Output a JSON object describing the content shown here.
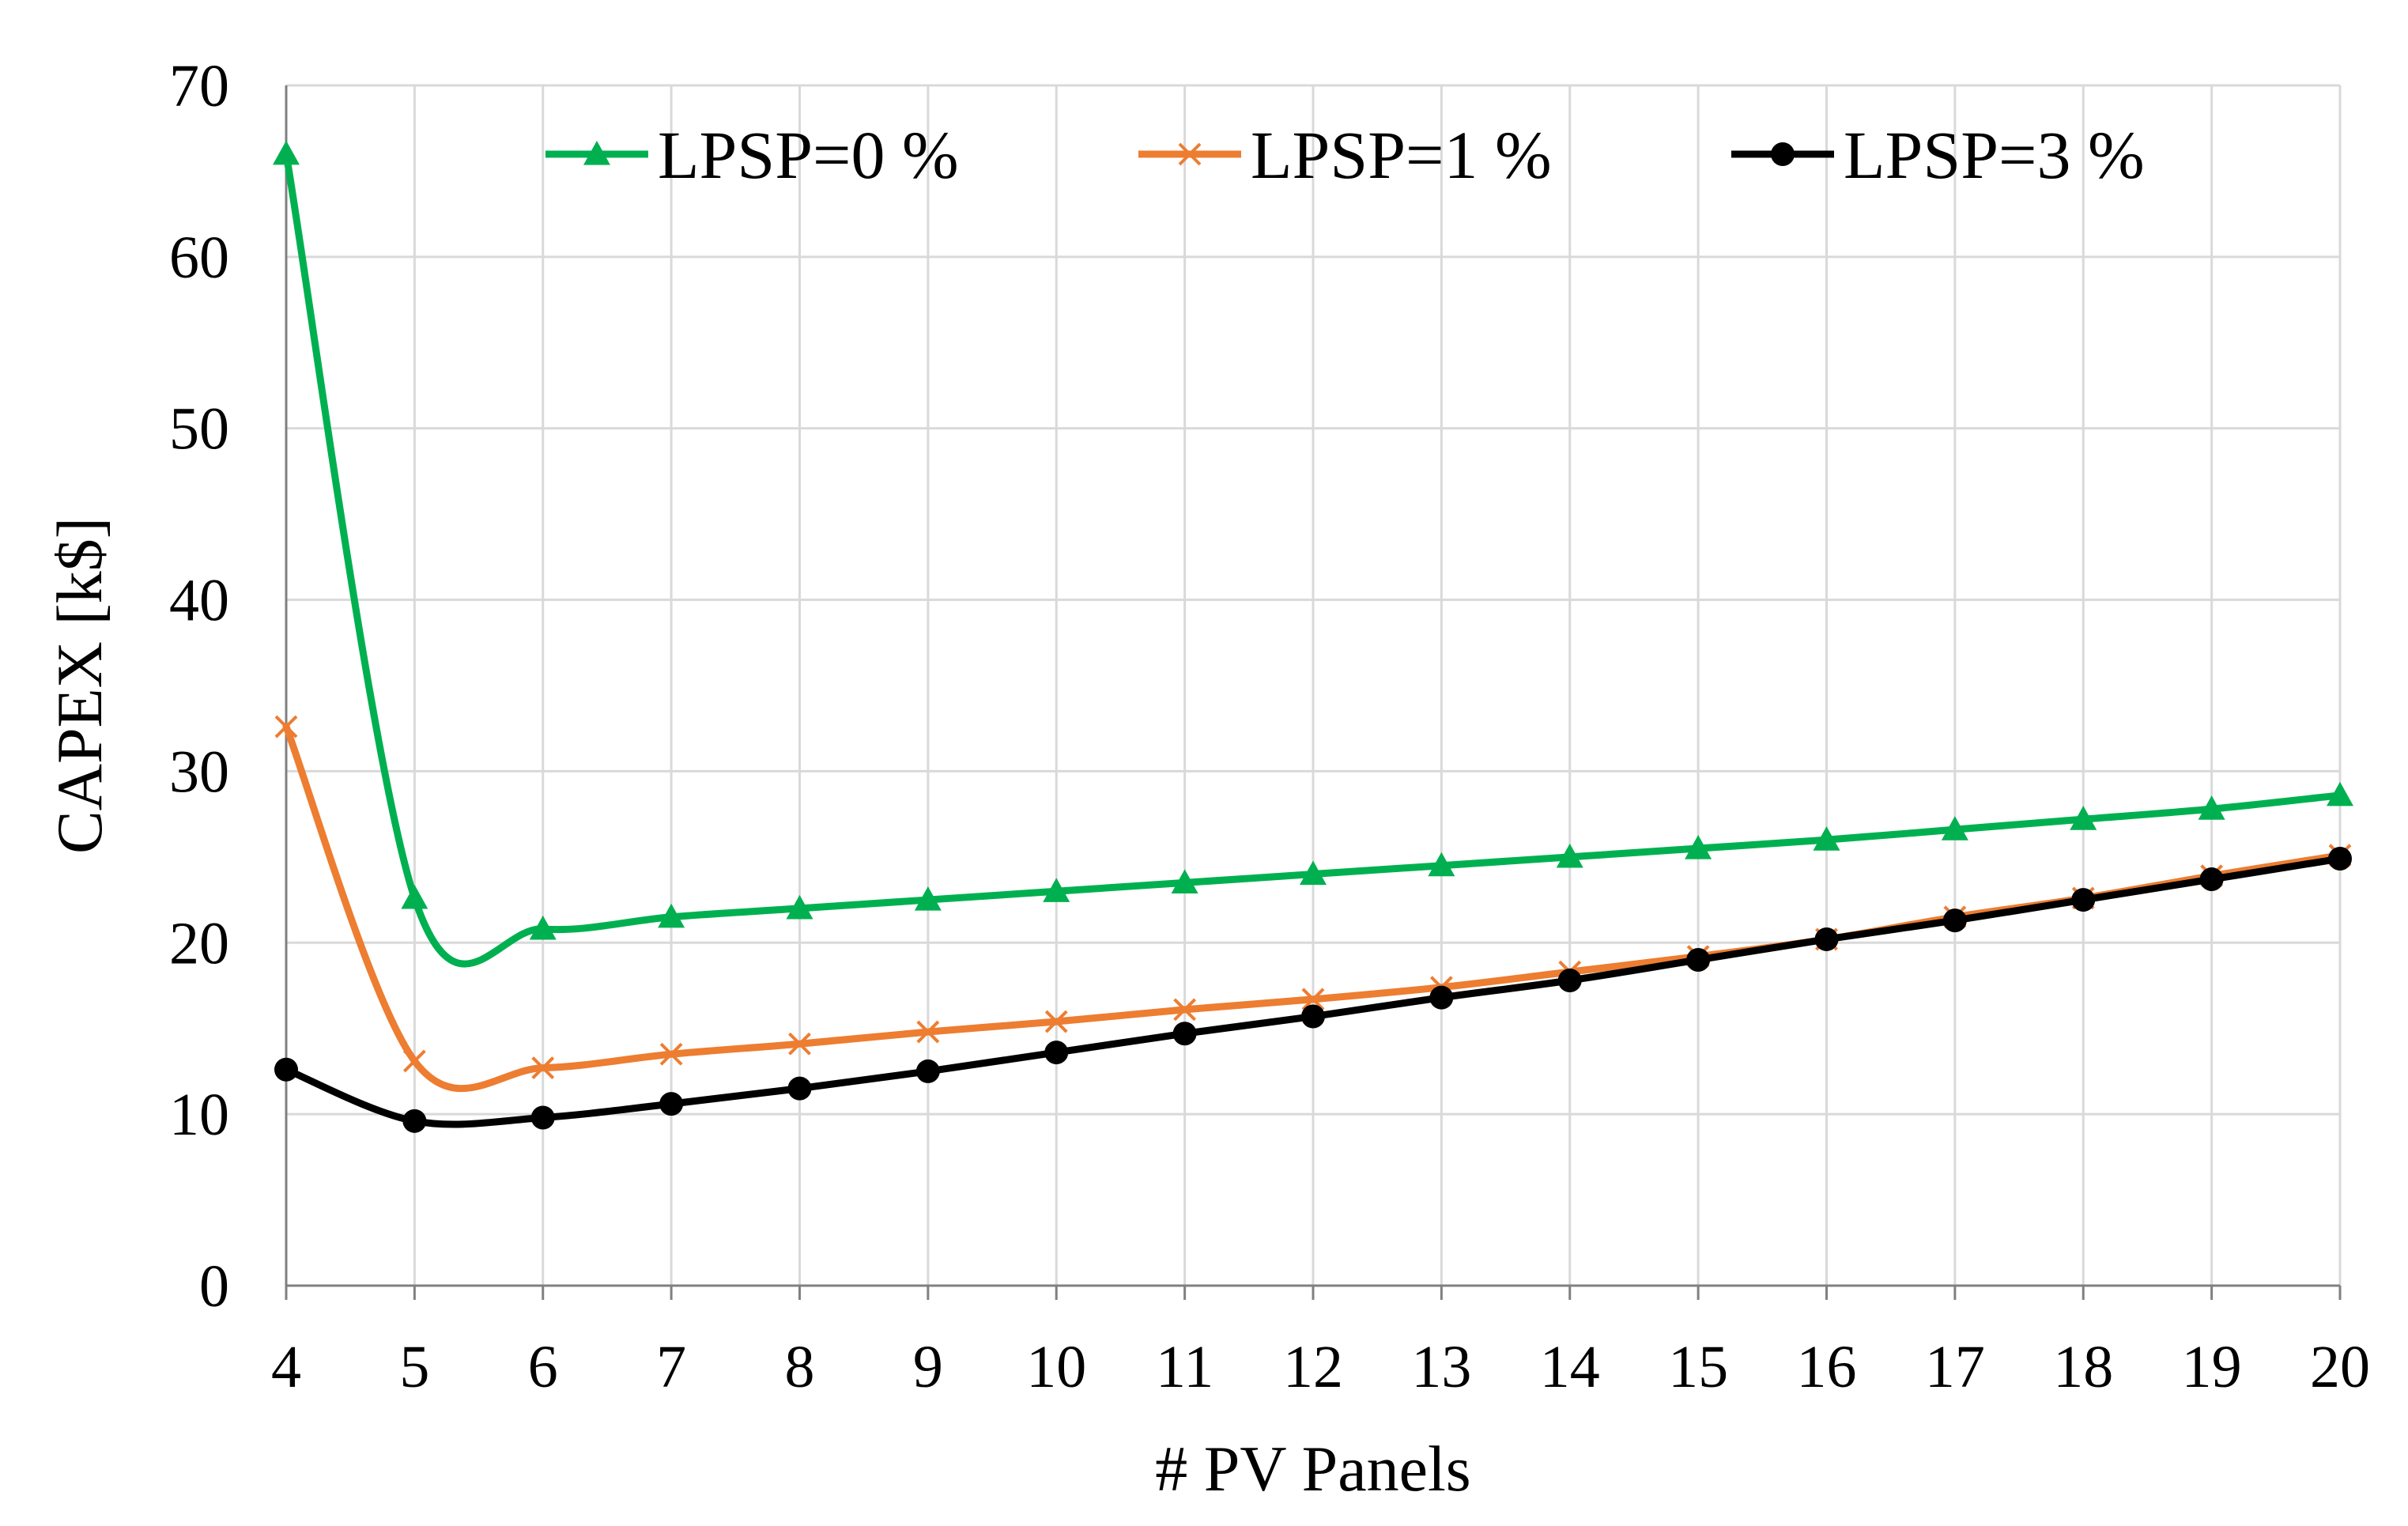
{
  "chart_data": {
    "type": "line",
    "title": "",
    "xlabel": "# PV Panels",
    "ylabel": "CAPEX [k$]",
    "x": [
      4,
      5,
      6,
      7,
      8,
      9,
      10,
      11,
      12,
      13,
      14,
      15,
      16,
      17,
      18,
      19,
      20
    ],
    "xlim": [
      4,
      20
    ],
    "ylim": [
      0,
      70
    ],
    "yticks": [
      0,
      10,
      20,
      30,
      40,
      50,
      60,
      70
    ],
    "grid": true,
    "legend_position": "top",
    "series": [
      {
        "name": "LPSP=0 %",
        "color": "#00B050",
        "marker": "triangle",
        "values": [
          66.0,
          22.6,
          20.8,
          21.5,
          22.0,
          22.5,
          23.0,
          23.5,
          24.0,
          24.5,
          25.0,
          25.5,
          26.0,
          26.6,
          27.2,
          27.8,
          28.6
        ]
      },
      {
        "name": "LPSP=1 %",
        "color": "#ED7D31",
        "marker": "x",
        "values": [
          32.6,
          13.1,
          12.7,
          13.5,
          14.1,
          14.8,
          15.4,
          16.1,
          16.7,
          17.4,
          18.3,
          19.2,
          20.2,
          21.5,
          22.6,
          23.9,
          25.1
        ]
      },
      {
        "name": "LPSP=3 %",
        "color": "#000000",
        "marker": "circle",
        "values": [
          12.6,
          9.6,
          9.8,
          10.6,
          11.5,
          12.5,
          13.6,
          14.7,
          15.7,
          16.8,
          17.8,
          19.0,
          20.2,
          21.3,
          22.5,
          23.7,
          24.9
        ]
      }
    ]
  }
}
